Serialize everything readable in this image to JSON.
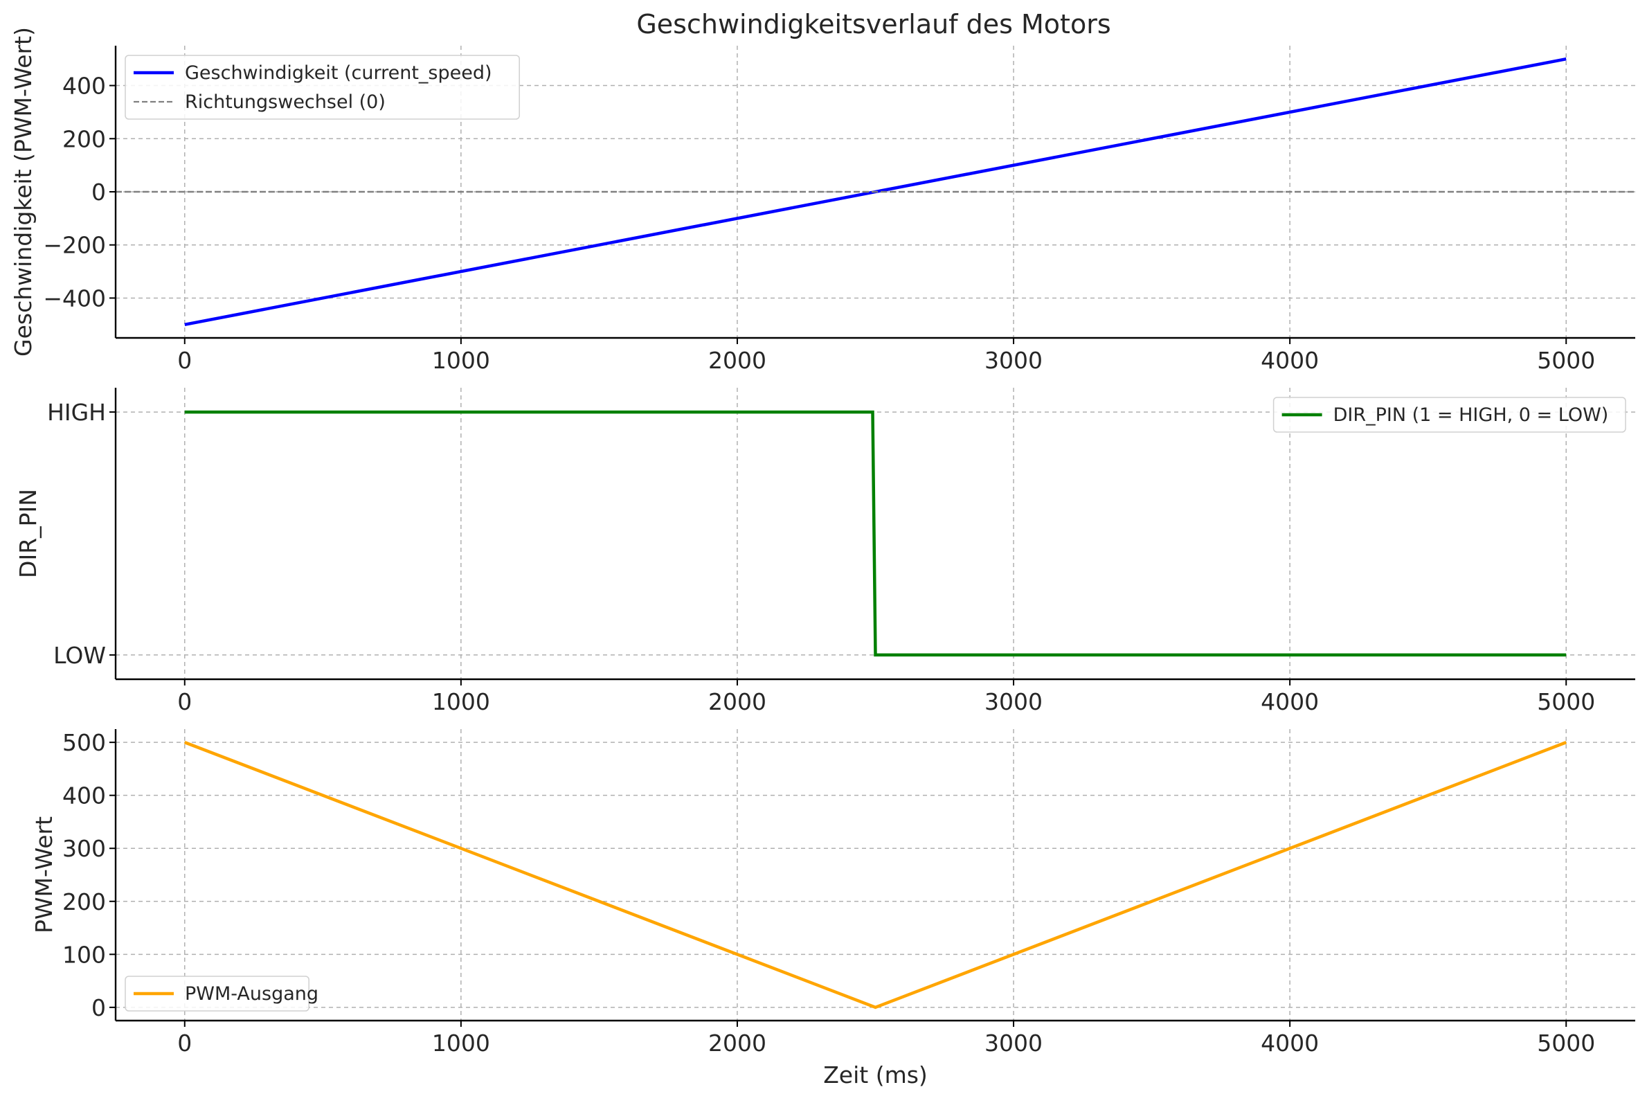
{
  "title": "Geschwindigkeitsverlauf des Motors",
  "chart_data": [
    {
      "type": "line",
      "ylabel": "Geschwindigkeit (PWM-Wert)",
      "xlabel": "",
      "xlim": [
        -250,
        5250
      ],
      "ylim": [
        -550,
        550
      ],
      "xticks": [
        0,
        1000,
        2000,
        3000,
        4000,
        5000
      ],
      "yticks": [
        -400,
        -200,
        0,
        200,
        400
      ],
      "ytick_labels": [
        "−400",
        "−200",
        "0",
        "200",
        "400"
      ],
      "grid": true,
      "legend_position": "upper left",
      "series": [
        {
          "name": "Geschwindigkeit (current_speed)",
          "color": "#0000ff",
          "style": "solid",
          "x": [
            0,
            5000
          ],
          "y": [
            -500,
            500
          ]
        },
        {
          "name": "Richtungswechsel (0)",
          "color": "#808080",
          "style": "dashed",
          "hline": 0
        }
      ]
    },
    {
      "type": "line",
      "ylabel": "DIR_PIN",
      "xlabel": "",
      "xlim": [
        -250,
        5250
      ],
      "ylim": [
        -0.1,
        1.1
      ],
      "xticks": [
        0,
        1000,
        2000,
        3000,
        4000,
        5000
      ],
      "yticks": [
        0,
        1
      ],
      "ytick_labels": [
        "LOW",
        "HIGH"
      ],
      "grid": true,
      "legend_position": "upper right",
      "series": [
        {
          "name": "DIR_PIN (1 = HIGH, 0 = LOW)",
          "color": "#008000",
          "style": "solid",
          "x": [
            0,
            2490,
            2500,
            5000
          ],
          "y": [
            1,
            1,
            0,
            0
          ]
        }
      ]
    },
    {
      "type": "line",
      "ylabel": "PWM-Wert",
      "xlabel": "Zeit (ms)",
      "xlim": [
        -250,
        5250
      ],
      "ylim": [
        -25,
        525
      ],
      "xticks": [
        0,
        1000,
        2000,
        3000,
        4000,
        5000
      ],
      "yticks": [
        0,
        100,
        200,
        300,
        400,
        500
      ],
      "ytick_labels": [
        "0",
        "100",
        "200",
        "300",
        "400",
        "500"
      ],
      "grid": true,
      "legend_position": "lower left",
      "series": [
        {
          "name": "PWM-Ausgang",
          "color": "#ffa500",
          "style": "solid",
          "x": [
            0,
            2500,
            5000
          ],
          "y": [
            500,
            0,
            500
          ]
        }
      ]
    }
  ]
}
